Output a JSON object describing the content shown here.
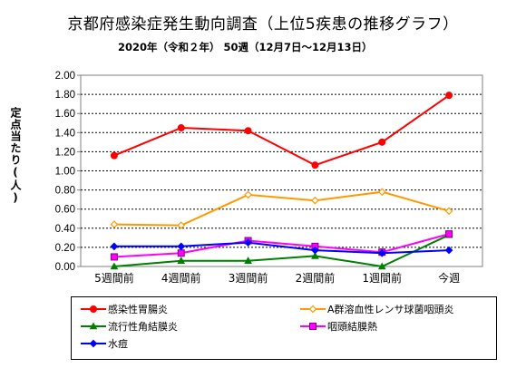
{
  "title": "京都府感染症発生動向調査（上位5疾患の推移グラフ）",
  "subtitle": "2020年（令和２年） 50週（12月7日～12月13日）",
  "chart_data": {
    "type": "line",
    "title": "京都府感染症発生動向調査（上位5疾患の推移グラフ）",
    "subtitle": "2020年（令和２年） 50週（12月7日～12月13日）",
    "ylabel": "定点当たり(人)",
    "xlabel": "",
    "categories": [
      "5週間前",
      "4週間前",
      "3週間前",
      "2週間前",
      "1週間前",
      "今週"
    ],
    "ylim": [
      0,
      2
    ],
    "yticks": [
      "0.00",
      "0.20",
      "0.40",
      "0.60",
      "0.80",
      "1.00",
      "1.20",
      "1.40",
      "1.60",
      "1.80",
      "2.00"
    ],
    "grid": true,
    "legend_position": "bottom",
    "series": [
      {
        "name": "感染性胃腸炎",
        "values": [
          1.16,
          1.45,
          1.42,
          1.06,
          1.3,
          1.79
        ],
        "color": "#ff0000",
        "marker": "circle"
      },
      {
        "name": "A群溶血性レンサ球菌咽頭炎",
        "values": [
          0.44,
          0.43,
          0.75,
          0.69,
          0.78,
          0.58
        ],
        "color": "#ff9900",
        "marker": "diamond-open"
      },
      {
        "name": "流行性角結膜炎",
        "values": [
          0.0,
          0.06,
          0.06,
          0.11,
          0.0,
          0.33
        ],
        "color": "#008000",
        "marker": "triangle"
      },
      {
        "name": "咽頭結膜熱",
        "values": [
          0.1,
          0.14,
          0.27,
          0.21,
          0.15,
          0.34
        ],
        "color": "#ff00ff",
        "marker": "square-open"
      },
      {
        "name": "水痘",
        "values": [
          0.21,
          0.21,
          0.25,
          0.17,
          0.14,
          0.17
        ],
        "color": "#0000ff",
        "marker": "diamond"
      }
    ]
  }
}
